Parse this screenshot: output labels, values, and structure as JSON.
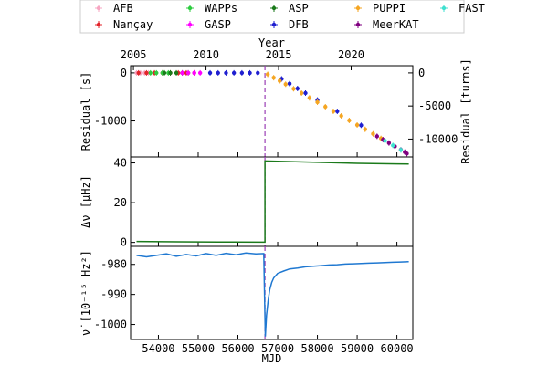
{
  "chart_data": {
    "type": "line",
    "legend": {
      "placement": "top",
      "entries": [
        {
          "label": "AFB",
          "color": "#f7a6c2"
        },
        {
          "label": "WAPPs",
          "color": "#2ecc40"
        },
        {
          "label": "ASP",
          "color": "#1b7a1b"
        },
        {
          "label": "PUPPI",
          "color": "#f5a623"
        },
        {
          "label": "FAST",
          "color": "#40e0d0"
        },
        {
          "label": "Nançay",
          "color": "#e3242b"
        },
        {
          "label": "GASP",
          "color": "#ff00ff"
        },
        {
          "label": "DFB",
          "color": "#1f1fd0"
        },
        {
          "label": "MeerKAT",
          "color": "#800080"
        }
      ]
    },
    "x": {
      "label": "MJD",
      "lim": [
        53300,
        60400
      ],
      "ticks": [
        54000,
        55000,
        56000,
        57000,
        58000,
        59000,
        60000
      ]
    },
    "top_x": {
      "label": "Year",
      "ticks": [
        {
          "label": "2005",
          "mjd": 53371
        },
        {
          "label": "2010",
          "mjd": 55197
        },
        {
          "label": "2015",
          "mjd": 57023
        },
        {
          "label": "2020",
          "mjd": 58849
        }
      ]
    },
    "glitch_mjd": 56680,
    "panels": [
      {
        "ylabel": "Residual [s]",
        "ylim": [
          -1750,
          150
        ],
        "yticks": [
          0,
          -1000
        ],
        "right_axis": {
          "label": "Residual [turns]",
          "lim": [
            -12700,
            1090
          ],
          "ticks": [
            0,
            -5000,
            -10000
          ]
        },
        "series": [
          {
            "name": "AFB",
            "mjd": [
              53450,
              53550,
              53650,
              53750
            ],
            "value": [
              0,
              0,
              0,
              0
            ]
          },
          {
            "name": "Nançay",
            "mjd": [
              53500,
              53700,
              53900,
              54100,
              54300,
              54500,
              54700,
              54900
            ],
            "value": [
              0,
              0,
              0,
              0,
              0,
              0,
              0,
              0
            ]
          },
          {
            "name": "WAPPs",
            "mjd": [
              53800,
              53950,
              54100,
              54250
            ],
            "value": [
              0,
              0,
              0,
              0
            ]
          },
          {
            "name": "ASP",
            "mjd": [
              54150,
              54300,
              54450,
              54600,
              54750
            ],
            "value": [
              0,
              0,
              0,
              0,
              0
            ]
          },
          {
            "name": "GASP",
            "mjd": [
              54600,
              54750,
              54900,
              55050
            ],
            "value": [
              0,
              0,
              0,
              0
            ]
          },
          {
            "name": "DFB",
            "mjd": [
              55300,
              55500,
              55700,
              55900,
              56100,
              56300,
              56500,
              57100,
              57300,
              57500,
              57700,
              58000,
              58500,
              59100
            ],
            "value": [
              0,
              0,
              0,
              0,
              0,
              0,
              0,
              -125,
              -225,
              -325,
              -420,
              -565,
              -800,
              -1090
            ]
          },
          {
            "name": "PUPPI",
            "mjd": [
              56750,
              56900,
              57050,
              57200,
              57400,
              57600,
              57800,
              58000,
              58200,
              58400,
              58600,
              58800,
              59000,
              59200,
              59400,
              59600
            ],
            "value": [
              -30,
              -100,
              -165,
              -235,
              -330,
              -420,
              -520,
              -610,
              -705,
              -800,
              -895,
              -990,
              -1085,
              -1175,
              -1270,
              -1365
            ]
          },
          {
            "name": "MeerKAT",
            "mjd": [
              59500,
              59650,
              59800,
              59950,
              60100,
              60200,
              60250
            ],
            "value": [
              -1320,
              -1390,
              -1460,
              -1530,
              -1600,
              -1650,
              -1680
            ]
          },
          {
            "name": "FAST",
            "mjd": [
              59700,
              59900,
              60100
            ],
            "value": [
              -1415,
              -1510,
              -1605
            ]
          }
        ]
      },
      {
        "ylabel": "Δν [μHz]",
        "ylim": [
          -2,
          43
        ],
        "yticks": [
          0,
          20,
          40
        ],
        "series": [
          {
            "name": "",
            "color": "#1b7a1b",
            "mjd": [
              53450,
              54500,
              55500,
              56680,
              56681,
              57000,
              58000,
              59000,
              60000,
              60300
            ],
            "value": [
              0.5,
              0.3,
              0.2,
              0.1,
              41,
              40.8,
              40.3,
              39.8,
              39.5,
              39.4
            ]
          }
        ]
      },
      {
        "ylabel": "ν̇ [10⁻¹⁵ Hz²]",
        "ylim": [
          -1005,
          -974
        ],
        "yticks": [
          -980,
          -990,
          -1000
        ],
        "series": [
          {
            "name": "",
            "color": "#1f78d1",
            "mjd": [
              53450,
              53700,
              53950,
              54200,
              54450,
              54700,
              54950,
              55200,
              55450,
              55700,
              55950,
              56200,
              56450,
              56650,
              56690,
              56720,
              56760,
              56800,
              56850,
              56900,
              57000,
              57150,
              57300,
              57500,
              57700,
              57900,
              58100,
              58300,
              58500,
              58700,
              58900,
              59100,
              59300,
              59500,
              59700,
              59900,
              60100,
              60300
            ],
            "value": [
              -977,
              -977.5,
              -977,
              -976.5,
              -977.3,
              -976.7,
              -977.2,
              -976.4,
              -977,
              -976.3,
              -976.8,
              -976.2,
              -976.5,
              -976.4,
              -1004,
              -997,
              -992,
              -988.5,
              -986,
              -984.5,
              -983,
              -982.2,
              -981.5,
              -981.2,
              -980.8,
              -980.6,
              -980.4,
              -980.2,
              -980.1,
              -979.9,
              -979.8,
              -979.7,
              -979.6,
              -979.5,
              -979.4,
              -979.3,
              -979.2,
              -979.1
            ]
          }
        ]
      }
    ]
  }
}
